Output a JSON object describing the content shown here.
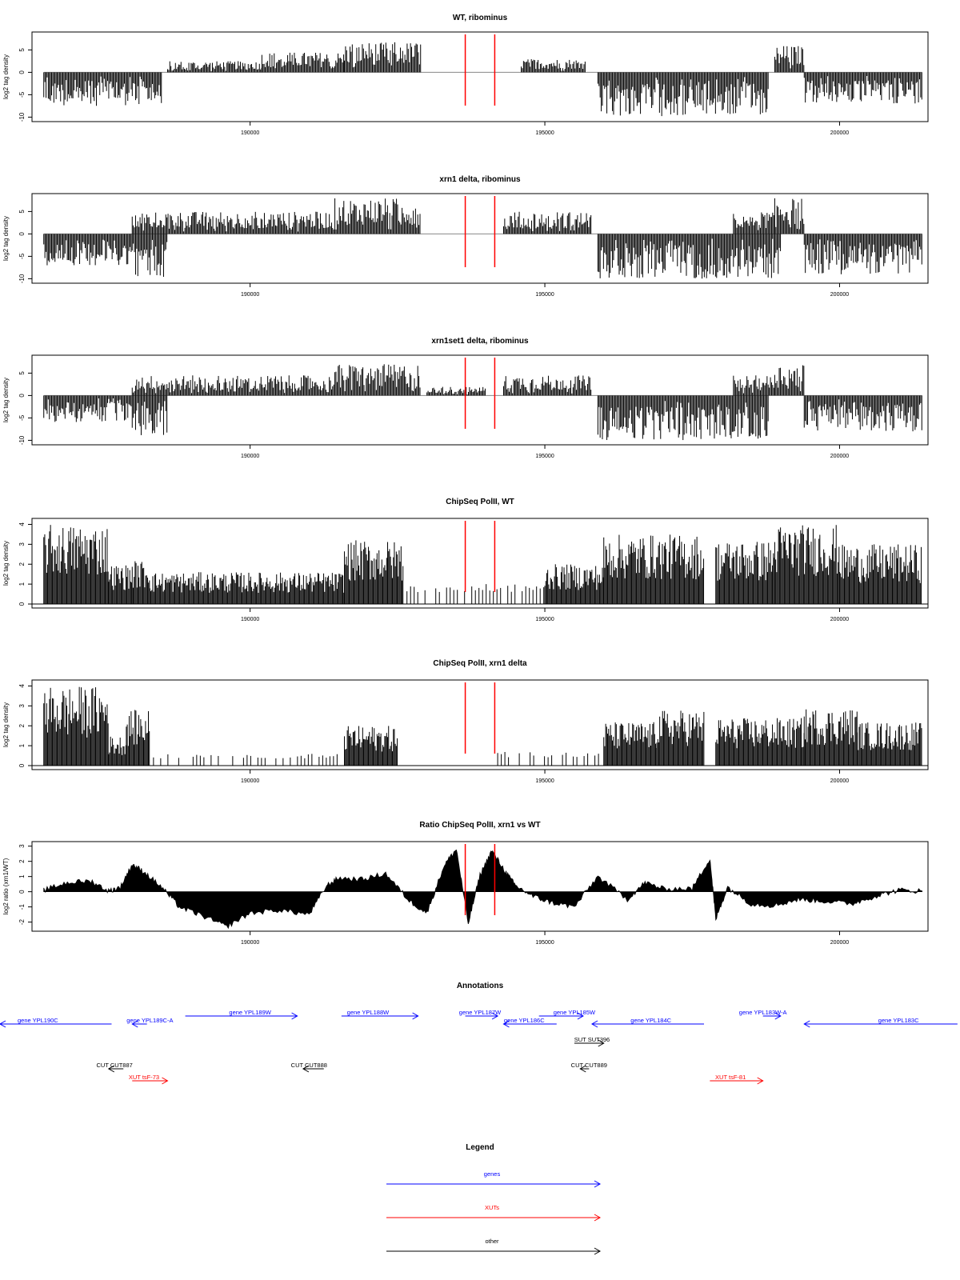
{
  "chart_data": [
    {
      "type": "bar",
      "title": "WT, ribominus",
      "xlabel": "",
      "ylabel": "log2 tag density",
      "xlim": [
        186300,
        201500
      ],
      "ylim": [
        -11,
        9
      ],
      "ytick_labels": [
        "-10",
        "-5",
        "0",
        "5"
      ],
      "x_tick_labels": [
        "190000",
        "195000",
        "200000"
      ],
      "grid": false,
      "marker_x": [
        193650,
        194150
      ],
      "marker_color": "#ff0000",
      "bar_color": "#000000",
      "mode": "tags",
      "segments": [
        {
          "x": [
            186500,
            188500
          ],
          "sign": -1,
          "max": 7.5
        },
        {
          "x": [
            188600,
            190200
          ],
          "sign": 1,
          "max": 2.5
        },
        {
          "x": [
            190200,
            191600
          ],
          "sign": 1,
          "max": 4.5
        },
        {
          "x": [
            191600,
            192900
          ],
          "sign": 1,
          "max": 6.8
        },
        {
          "x": [
            194600,
            195700
          ],
          "sign": 1,
          "max": 3.0
        },
        {
          "x": [
            195900,
            198800
          ],
          "sign": -1,
          "max": 9.8
        },
        {
          "x": [
            198900,
            199400
          ],
          "sign": 1,
          "max": 6.0
        },
        {
          "x": [
            199400,
            201400
          ],
          "sign": -1,
          "max": 7.0
        }
      ]
    },
    {
      "type": "bar",
      "title": "xrn1 delta, ribominus",
      "xlabel": "",
      "ylabel": "log2 tag density",
      "xlim": [
        186300,
        201500
      ],
      "ylim": [
        -11,
        9
      ],
      "ytick_labels": [
        "-10",
        "-5",
        "0",
        "5"
      ],
      "x_tick_labels": [
        "190000",
        "195000",
        "200000"
      ],
      "grid": false,
      "marker_x": [
        193650,
        194150
      ],
      "marker_color": "#ff0000",
      "bar_color": "#000000",
      "mode": "tags",
      "segments": [
        {
          "x": [
            186500,
            188000
          ],
          "sign": -1,
          "max": 7.0
        },
        {
          "x": [
            188000,
            188600
          ],
          "sign": -1,
          "max": 10.0
        },
        {
          "x": [
            188000,
            191400
          ],
          "sign": 1,
          "max": 5.0
        },
        {
          "x": [
            191400,
            192900
          ],
          "sign": 1,
          "max": 8.0
        },
        {
          "x": [
            194300,
            195800
          ],
          "sign": 1,
          "max": 5.0
        },
        {
          "x": [
            195900,
            199000
          ],
          "sign": -1,
          "max": 10.0
        },
        {
          "x": [
            198200,
            198900
          ],
          "sign": 1,
          "max": 5.0
        },
        {
          "x": [
            198900,
            199400
          ],
          "sign": 1,
          "max": 8.0
        },
        {
          "x": [
            199400,
            201400
          ],
          "sign": -1,
          "max": 9.0
        }
      ]
    },
    {
      "type": "bar",
      "title": "xrn1set1 delta, ribominus",
      "xlabel": "",
      "ylabel": "log2 tag density",
      "xlim": [
        186300,
        201500
      ],
      "ylim": [
        -11,
        9
      ],
      "ytick_labels": [
        "-10",
        "-5",
        "0",
        "5"
      ],
      "x_tick_labels": [
        "190000",
        "195000",
        "200000"
      ],
      "grid": false,
      "marker_x": [
        193650,
        194150
      ],
      "marker_color": "#ff0000",
      "bar_color": "#000000",
      "mode": "tags",
      "segments": [
        {
          "x": [
            186500,
            188000
          ],
          "sign": -1,
          "max": 6.0
        },
        {
          "x": [
            188000,
            188600
          ],
          "sign": -1,
          "max": 9.0
        },
        {
          "x": [
            188000,
            191400
          ],
          "sign": 1,
          "max": 4.5
        },
        {
          "x": [
            191400,
            192900
          ],
          "sign": 1,
          "max": 7.0
        },
        {
          "x": [
            193000,
            194000
          ],
          "sign": 1,
          "max": 2.0
        },
        {
          "x": [
            194300,
            195800
          ],
          "sign": 1,
          "max": 4.5
        },
        {
          "x": [
            195900,
            198800
          ],
          "sign": -1,
          "max": 10.0
        },
        {
          "x": [
            198200,
            198900
          ],
          "sign": 1,
          "max": 4.5
        },
        {
          "x": [
            198900,
            199400
          ],
          "sign": 1,
          "max": 7.0
        },
        {
          "x": [
            199400,
            201400
          ],
          "sign": -1,
          "max": 8.0
        }
      ]
    },
    {
      "type": "bar",
      "title": "ChipSeq PolII, WT",
      "xlabel": "",
      "ylabel": "log2 tag density",
      "xlim": [
        186300,
        201500
      ],
      "ylim": [
        -0.2,
        4.3
      ],
      "ytick_labels": [
        "0",
        "1",
        "2",
        "3",
        "4"
      ],
      "x_tick_labels": [
        "190000",
        "195000",
        "200000"
      ],
      "grid": false,
      "marker_x": [
        193650,
        194150
      ],
      "marker_color": "#ff0000",
      "bar_color": "#000000",
      "mode": "chip",
      "segments": [
        {
          "x": [
            186500,
            187600
          ],
          "max": 4.0
        },
        {
          "x": [
            187600,
            188000
          ],
          "max": 2.0
        },
        {
          "x": [
            188000,
            188300
          ],
          "max": 2.2
        },
        {
          "x": [
            188300,
            191600
          ],
          "max": 1.6
        },
        {
          "x": [
            191600,
            192600
          ],
          "max": 3.2
        },
        {
          "x": [
            192600,
            195000
          ],
          "max": 1.0
        },
        {
          "x": [
            195000,
            196000
          ],
          "max": 2.0
        },
        {
          "x": [
            196000,
            197700
          ],
          "max": 3.5
        },
        {
          "x": [
            197900,
            198900
          ],
          "max": 3.2
        },
        {
          "x": [
            198900,
            200000
          ],
          "max": 4.0
        },
        {
          "x": [
            200000,
            201400
          ],
          "max": 3.0
        }
      ]
    },
    {
      "type": "bar",
      "title": "ChipSeq PolII, xrn1 delta",
      "xlabel": "",
      "ylabel": "log2 tag density",
      "xlim": [
        186300,
        201500
      ],
      "ylim": [
        -0.2,
        4.3
      ],
      "ytick_labels": [
        "0",
        "1",
        "2",
        "3",
        "4"
      ],
      "x_tick_labels": [
        "190000",
        "195000",
        "200000"
      ],
      "grid": false,
      "marker_x": [
        193650,
        194150
      ],
      "marker_color": "#ff0000",
      "bar_color": "#000000",
      "mode": "chip",
      "segments": [
        {
          "x": [
            186500,
            187600
          ],
          "max": 4.0
        },
        {
          "x": [
            187600,
            187900
          ],
          "max": 1.5
        },
        {
          "x": [
            187900,
            188300
          ],
          "max": 2.8
        },
        {
          "x": [
            188300,
            191600
          ],
          "max": 0.6
        },
        {
          "x": [
            191600,
            192500
          ],
          "max": 2.0
        },
        {
          "x": [
            194200,
            196000
          ],
          "max": 0.7
        },
        {
          "x": [
            196000,
            196900
          ],
          "max": 2.2
        },
        {
          "x": [
            196900,
            197700
          ],
          "max": 2.8
        },
        {
          "x": [
            197900,
            199400
          ],
          "max": 2.4
        },
        {
          "x": [
            199400,
            200300
          ],
          "max": 2.9
        },
        {
          "x": [
            200300,
            201400
          ],
          "max": 2.2
        }
      ]
    },
    {
      "type": "area",
      "title": "Ratio ChipSeq PolII, xrn1 vs WT",
      "xlabel": "",
      "ylabel": "log2 ratio (xrn1/WT)",
      "xlim": [
        186300,
        201500
      ],
      "ylim": [
        -2.6,
        3.3
      ],
      "ytick_labels": [
        "-2",
        "-1",
        "0",
        "1",
        "2",
        "3"
      ],
      "x_tick_labels": [
        "190000",
        "195000",
        "200000"
      ],
      "grid": false,
      "marker_x": [
        193650,
        194150
      ],
      "marker_color": "#ff0000",
      "bar_color": "#000000",
      "mode": "ratio",
      "x": [
        186500,
        186900,
        187300,
        187600,
        187800,
        188000,
        188200,
        188500,
        188800,
        189200,
        189600,
        190000,
        190500,
        191000,
        191300,
        191500,
        191900,
        192300,
        192700,
        193000,
        193300,
        193500,
        193700,
        193900,
        194100,
        194300,
        194500,
        194800,
        195100,
        195500,
        195900,
        196400,
        196700,
        197000,
        197500,
        197800,
        197900,
        198100,
        198500,
        198900,
        199300,
        199700,
        200200,
        200600,
        201000,
        201400
      ],
      "y": [
        0.1,
        0.6,
        0.7,
        0.05,
        0.3,
        1.8,
        1.3,
        0.3,
        -1.0,
        -1.6,
        -2.3,
        -1.4,
        -1.2,
        -1.5,
        0.4,
        0.9,
        0.8,
        1.2,
        -0.6,
        -1.4,
        1.8,
        2.8,
        -2.1,
        1.1,
        2.7,
        1.5,
        0.4,
        -0.3,
        -0.7,
        -1.0,
        1.0,
        -0.5,
        0.6,
        0.2,
        0.2,
        2.2,
        -1.8,
        0.3,
        -0.8,
        -0.9,
        -0.5,
        -0.6,
        -0.8,
        -0.3,
        0.1,
        0.05
      ]
    }
  ],
  "annotations": {
    "title": "Annotations",
    "xlim": [
      186300,
      201500
    ],
    "tracks": [
      {
        "label": "gene YPL190C",
        "color": "#0000ff",
        "x": [
          185700,
          187650
        ],
        "dir": "left",
        "row": 0,
        "label_x": 186400
      },
      {
        "label": "gene YPL189C-A",
        "color": "#0000ff",
        "x": [
          188000,
          188250
        ],
        "dir": "left",
        "row": 0,
        "label_x": 188300
      },
      {
        "label": "gene YPL189W",
        "color": "#0000ff",
        "x": [
          188900,
          190800
        ],
        "dir": "right",
        "row": -1,
        "label_x": 190000
      },
      {
        "label": "gene YPL188W",
        "color": "#0000ff",
        "x": [
          191550,
          192850
        ],
        "dir": "right",
        "row": -1,
        "label_x": 192000
      },
      {
        "label": "gene YPL187W",
        "color": "#0000ff",
        "x": [
          193650,
          194200
        ],
        "dir": "right",
        "row": -1,
        "label_x": 193900
      },
      {
        "label": "gene YPL186C",
        "color": "#0000ff",
        "x": [
          194300,
          195200
        ],
        "dir": "left",
        "row": 0,
        "label_x": 194650
      },
      {
        "label": "gene YPL185W",
        "color": "#0000ff",
        "x": [
          194900,
          195650
        ],
        "dir": "right",
        "row": -1,
        "label_x": 195500
      },
      {
        "label": "gene YPL184C",
        "color": "#0000ff",
        "x": [
          195800,
          197700
        ],
        "dir": "left",
        "row": 0,
        "label_x": 196800
      },
      {
        "label": "gene YPL183W-A",
        "color": "#0000ff",
        "x": [
          198700,
          199000
        ],
        "dir": "right",
        "row": -1,
        "label_x": 198700
      },
      {
        "label": "gene YPL183C",
        "color": "#0000ff",
        "x": [
          199400,
          202000
        ],
        "dir": "left",
        "row": 0,
        "label_x": 201000
      },
      {
        "label": "SUT SUT396",
        "color": "#000000",
        "x": [
          195500,
          196000
        ],
        "dir": "right",
        "row": 2,
        "label_x": 195800
      },
      {
        "label": "CUT CUT887",
        "color": "#000000",
        "x": [
          187600,
          187850
        ],
        "dir": "left",
        "row": 4,
        "label_x": 187700
      },
      {
        "label": "CUT CUT888",
        "color": "#000000",
        "x": [
          190900,
          191250
        ],
        "dir": "left",
        "row": 4,
        "label_x": 191000
      },
      {
        "label": "CUT CUT889",
        "color": "#000000",
        "x": [
          195600,
          195750
        ],
        "dir": "left",
        "row": 4,
        "label_x": 195750
      },
      {
        "label": "XUT tsF-73",
        "color": "#ff0000",
        "x": [
          188000,
          188600
        ],
        "dir": "right",
        "row": 5,
        "label_x": 188200
      },
      {
        "label": "XUT tsF-81",
        "color": "#ff0000",
        "x": [
          197800,
          198700
        ],
        "dir": "right",
        "row": 5,
        "label_x": 198150
      }
    ]
  },
  "legend": {
    "title": "Legend",
    "items": [
      {
        "label": "genes",
        "color": "#0000ff"
      },
      {
        "label": "XUTs",
        "color": "#ff0000"
      },
      {
        "label": "other",
        "color": "#000000"
      }
    ]
  }
}
